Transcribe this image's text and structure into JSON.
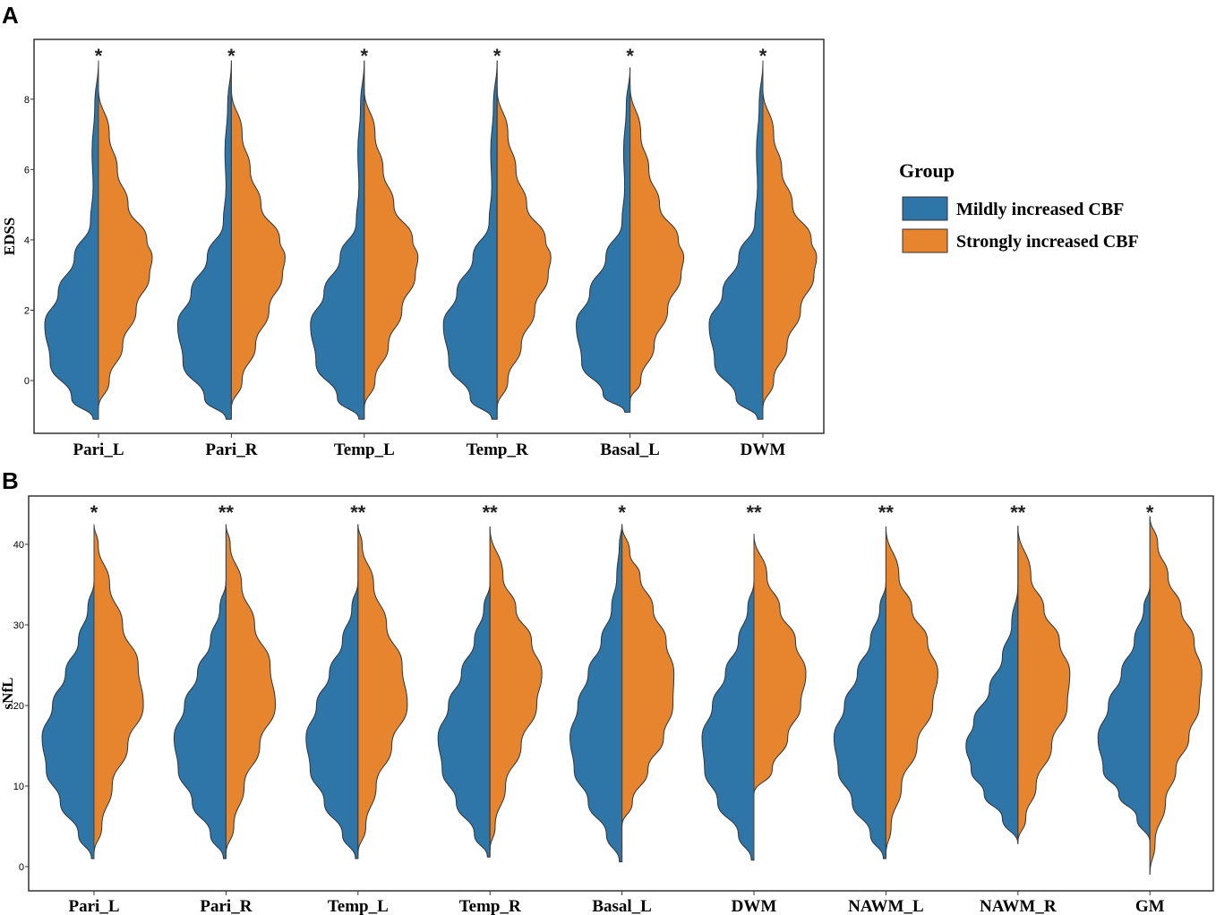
{
  "legend": {
    "title": "Group",
    "items": [
      {
        "label": "Mildly increased CBF",
        "color": "#2E75A8"
      },
      {
        "label": "Strongly increased CBF",
        "color": "#E6852E"
      }
    ]
  },
  "chart_data": [
    {
      "panel": "A",
      "type": "violin",
      "ylabel": "EDSS",
      "xlabel": "",
      "ylim": [
        -1.5,
        9.7
      ],
      "yticks": [
        0,
        2,
        4,
        6,
        8
      ],
      "categories": [
        "Pari_L",
        "Pari_R",
        "Temp_L",
        "Temp_R",
        "Basal_L",
        "DWM"
      ],
      "significance": [
        "*",
        "*",
        "*",
        "*",
        "*",
        "*"
      ],
      "series": [
        {
          "name": "Mildly increased CBF",
          "side": "left",
          "violins": [
            {
              "y": [
                -1.1,
                -0.5,
                0.5,
                1.6,
                2.5,
                3.5,
                4.5,
                5.5,
                6.5,
                7.8,
                9.1
              ],
              "w": [
                0.1,
                0.5,
                0.9,
                1.0,
                0.75,
                0.45,
                0.15,
                0.1,
                0.12,
                0.07,
                0.0
              ]
            },
            {
              "y": [
                -1.1,
                -0.5,
                0.5,
                1.6,
                2.5,
                3.5,
                4.5,
                5.5,
                6.5,
                7.8,
                9.1
              ],
              "w": [
                0.1,
                0.5,
                0.9,
                1.0,
                0.75,
                0.45,
                0.15,
                0.1,
                0.12,
                0.07,
                0.0
              ]
            },
            {
              "y": [
                -1.1,
                -0.5,
                0.5,
                1.6,
                2.5,
                3.5,
                4.5,
                5.5,
                6.5,
                7.8,
                9.1
              ],
              "w": [
                0.1,
                0.5,
                0.9,
                1.0,
                0.75,
                0.45,
                0.15,
                0.1,
                0.12,
                0.07,
                0.0
              ]
            },
            {
              "y": [
                -1.1,
                -0.5,
                0.5,
                1.6,
                2.5,
                3.5,
                4.5,
                5.5,
                6.5,
                7.8,
                9.1
              ],
              "w": [
                0.1,
                0.5,
                0.9,
                1.0,
                0.75,
                0.45,
                0.15,
                0.1,
                0.12,
                0.07,
                0.0
              ]
            },
            {
              "y": [
                -0.9,
                -0.4,
                0.5,
                1.6,
                2.5,
                3.5,
                4.5,
                5.5,
                6.5,
                7.8,
                8.9
              ],
              "w": [
                0.1,
                0.5,
                0.9,
                1.0,
                0.75,
                0.45,
                0.15,
                0.1,
                0.12,
                0.07,
                0.0
              ]
            },
            {
              "y": [
                -1.1,
                -0.5,
                0.5,
                1.6,
                2.5,
                3.5,
                4.5,
                5.5,
                6.5,
                7.8,
                9.1
              ],
              "w": [
                0.1,
                0.5,
                0.9,
                1.0,
                0.75,
                0.45,
                0.15,
                0.1,
                0.12,
                0.07,
                0.0
              ]
            }
          ]
        },
        {
          "name": "Strongly increased CBF",
          "side": "right",
          "violins": [
            {
              "y": [
                -0.8,
                0.0,
                1.0,
                2.0,
                3.0,
                3.5,
                4.0,
                5.0,
                6.0,
                7.0,
                8.3
              ],
              "w": [
                0.0,
                0.2,
                0.45,
                0.7,
                0.95,
                1.0,
                0.9,
                0.55,
                0.35,
                0.2,
                0.0
              ]
            },
            {
              "y": [
                -0.8,
                0.0,
                1.0,
                2.0,
                3.0,
                3.5,
                4.0,
                5.0,
                6.0,
                7.0,
                8.3
              ],
              "w": [
                0.0,
                0.2,
                0.45,
                0.7,
                0.95,
                1.0,
                0.9,
                0.55,
                0.35,
                0.2,
                0.0
              ]
            },
            {
              "y": [
                -0.8,
                0.0,
                1.0,
                2.0,
                3.0,
                3.5,
                4.0,
                5.0,
                6.0,
                7.0,
                8.3
              ],
              "w": [
                0.0,
                0.2,
                0.45,
                0.7,
                0.95,
                1.0,
                0.9,
                0.55,
                0.35,
                0.2,
                0.0
              ]
            },
            {
              "y": [
                -0.8,
                0.0,
                1.0,
                2.0,
                3.0,
                3.5,
                4.0,
                5.0,
                6.0,
                7.0,
                8.3
              ],
              "w": [
                0.0,
                0.2,
                0.45,
                0.7,
                0.95,
                1.0,
                0.9,
                0.55,
                0.35,
                0.2,
                0.0
              ]
            },
            {
              "y": [
                -0.6,
                0.0,
                1.0,
                2.0,
                3.0,
                3.5,
                4.0,
                5.0,
                6.0,
                7.0,
                8.4
              ],
              "w": [
                0.0,
                0.2,
                0.45,
                0.7,
                0.95,
                1.0,
                0.9,
                0.55,
                0.35,
                0.2,
                0.0
              ]
            },
            {
              "y": [
                -0.8,
                0.0,
                1.0,
                2.0,
                3.0,
                3.5,
                4.0,
                5.0,
                6.0,
                7.0,
                8.3
              ],
              "w": [
                0.0,
                0.2,
                0.45,
                0.7,
                0.95,
                1.0,
                0.9,
                0.55,
                0.35,
                0.2,
                0.0
              ]
            }
          ]
        }
      ]
    },
    {
      "panel": "B",
      "type": "violin",
      "ylabel": "sNfL",
      "xlabel": "",
      "ylim": [
        -3,
        46
      ],
      "yticks": [
        0,
        10,
        20,
        30,
        40
      ],
      "categories": [
        "Pari_L",
        "Pari_R",
        "Temp_L",
        "Temp_R",
        "Basal_L",
        "DWM",
        "NAWM_L",
        "NAWM_R",
        "GM"
      ],
      "significance": [
        "*",
        "**",
        "**",
        "**",
        "*",
        "**",
        "**",
        "**",
        "*"
      ],
      "series": [
        {
          "name": "Mildly increased CBF",
          "side": "left",
          "violins": [
            {
              "y": [
                1,
                4,
                8,
                12,
                16,
                20,
                24,
                28,
                32,
                35.5
              ],
              "w": [
                0.05,
                0.3,
                0.65,
                0.92,
                1.0,
                0.8,
                0.55,
                0.3,
                0.12,
                0.0
              ]
            },
            {
              "y": [
                1,
                4,
                8,
                12,
                16,
                20,
                24,
                28,
                32,
                35.5
              ],
              "w": [
                0.05,
                0.3,
                0.65,
                0.92,
                1.0,
                0.8,
                0.55,
                0.3,
                0.12,
                0.0
              ]
            },
            {
              "y": [
                1,
                4,
                8,
                12,
                16,
                20,
                24,
                28,
                32,
                35.5
              ],
              "w": [
                0.05,
                0.3,
                0.65,
                0.92,
                1.0,
                0.8,
                0.55,
                0.3,
                0.12,
                0.0
              ]
            },
            {
              "y": [
                1.2,
                4,
                8,
                12,
                16,
                20,
                24,
                28,
                32,
                35.3
              ],
              "w": [
                0.05,
                0.3,
                0.65,
                0.92,
                1.0,
                0.8,
                0.55,
                0.3,
                0.12,
                0.0
              ]
            },
            {
              "y": [
                0.6,
                4,
                8,
                12,
                16,
                20,
                24,
                28,
                32,
                36,
                40,
                42.5
              ],
              "w": [
                0.05,
                0.3,
                0.65,
                0.92,
                1.0,
                0.85,
                0.65,
                0.4,
                0.2,
                0.1,
                0.05,
                0.0
              ]
            },
            {
              "y": [
                0.8,
                4,
                8,
                12,
                16,
                20,
                24,
                28,
                32,
                35.5
              ],
              "w": [
                0.05,
                0.3,
                0.7,
                0.95,
                1.0,
                0.8,
                0.55,
                0.3,
                0.12,
                0.0
              ]
            },
            {
              "y": [
                1,
                4,
                8,
                12,
                16,
                20,
                24,
                28,
                32,
                35.3
              ],
              "w": [
                0.05,
                0.3,
                0.65,
                0.92,
                1.0,
                0.8,
                0.55,
                0.3,
                0.12,
                0.0
              ]
            },
            {
              "y": [
                2.8,
                6,
                9,
                12,
                15,
                18,
                22,
                26,
                30,
                35
              ],
              "w": [
                0.0,
                0.3,
                0.65,
                0.9,
                1.0,
                0.85,
                0.55,
                0.3,
                0.12,
                0.0
              ]
            },
            {
              "y": [
                3,
                6,
                9,
                12,
                16,
                20,
                24,
                28,
                32,
                35
              ],
              "w": [
                0.0,
                0.25,
                0.6,
                0.9,
                1.0,
                0.8,
                0.55,
                0.3,
                0.12,
                0.0
              ]
            }
          ]
        },
        {
          "name": "Strongly increased CBF",
          "side": "right",
          "violins": [
            {
              "y": [
                1.5,
                5,
                10,
                15,
                20,
                25,
                30,
                35,
                40,
                42.5
              ],
              "w": [
                0.0,
                0.15,
                0.35,
                0.65,
                0.95,
                0.85,
                0.55,
                0.3,
                0.08,
                0.0
              ]
            },
            {
              "y": [
                1.5,
                5,
                10,
                15,
                20,
                25,
                30,
                35,
                40,
                42.5
              ],
              "w": [
                0.0,
                0.15,
                0.35,
                0.65,
                0.95,
                0.85,
                0.55,
                0.3,
                0.08,
                0.0
              ]
            },
            {
              "y": [
                1.5,
                5,
                10,
                15,
                20,
                25,
                30,
                35,
                40,
                42.5
              ],
              "w": [
                0.0,
                0.15,
                0.35,
                0.65,
                0.95,
                0.85,
                0.55,
                0.3,
                0.08,
                0.0
              ]
            },
            {
              "y": [
                2,
                5,
                10,
                15,
                20,
                24,
                28,
                32,
                36,
                42.2
              ],
              "w": [
                0.0,
                0.1,
                0.3,
                0.6,
                0.9,
                1.0,
                0.8,
                0.5,
                0.25,
                0.0
              ]
            },
            {
              "y": [
                5,
                8,
                12,
                16,
                20,
                24,
                28,
                32,
                36,
                39,
                42.5
              ],
              "w": [
                0.0,
                0.2,
                0.5,
                0.8,
                0.98,
                1.0,
                0.85,
                0.6,
                0.35,
                0.15,
                0.0
              ]
            },
            {
              "y": [
                9,
                12,
                16,
                20,
                24,
                28,
                32,
                36,
                41.3
              ],
              "w": [
                0.0,
                0.35,
                0.65,
                0.9,
                1.0,
                0.8,
                0.5,
                0.25,
                0.0
              ]
            },
            {
              "y": [
                1.5,
                5,
                10,
                15,
                20,
                24,
                28,
                32,
                36,
                42.2
              ],
              "w": [
                0.0,
                0.1,
                0.3,
                0.6,
                0.9,
                1.0,
                0.8,
                0.5,
                0.25,
                0.0
              ]
            },
            {
              "y": [
                3,
                6,
                10,
                15,
                20,
                24,
                28,
                32,
                36,
                42.3
              ],
              "w": [
                0.0,
                0.15,
                0.35,
                0.65,
                0.95,
                1.0,
                0.8,
                0.5,
                0.25,
                0.0
              ]
            },
            {
              "y": [
                -1,
                3,
                8,
                12,
                16,
                20,
                24,
                28,
                32,
                36,
                40,
                43.5
              ],
              "w": [
                0.0,
                0.1,
                0.3,
                0.5,
                0.75,
                0.95,
                1.0,
                0.85,
                0.6,
                0.35,
                0.15,
                0.0
              ]
            }
          ]
        }
      ]
    }
  ]
}
